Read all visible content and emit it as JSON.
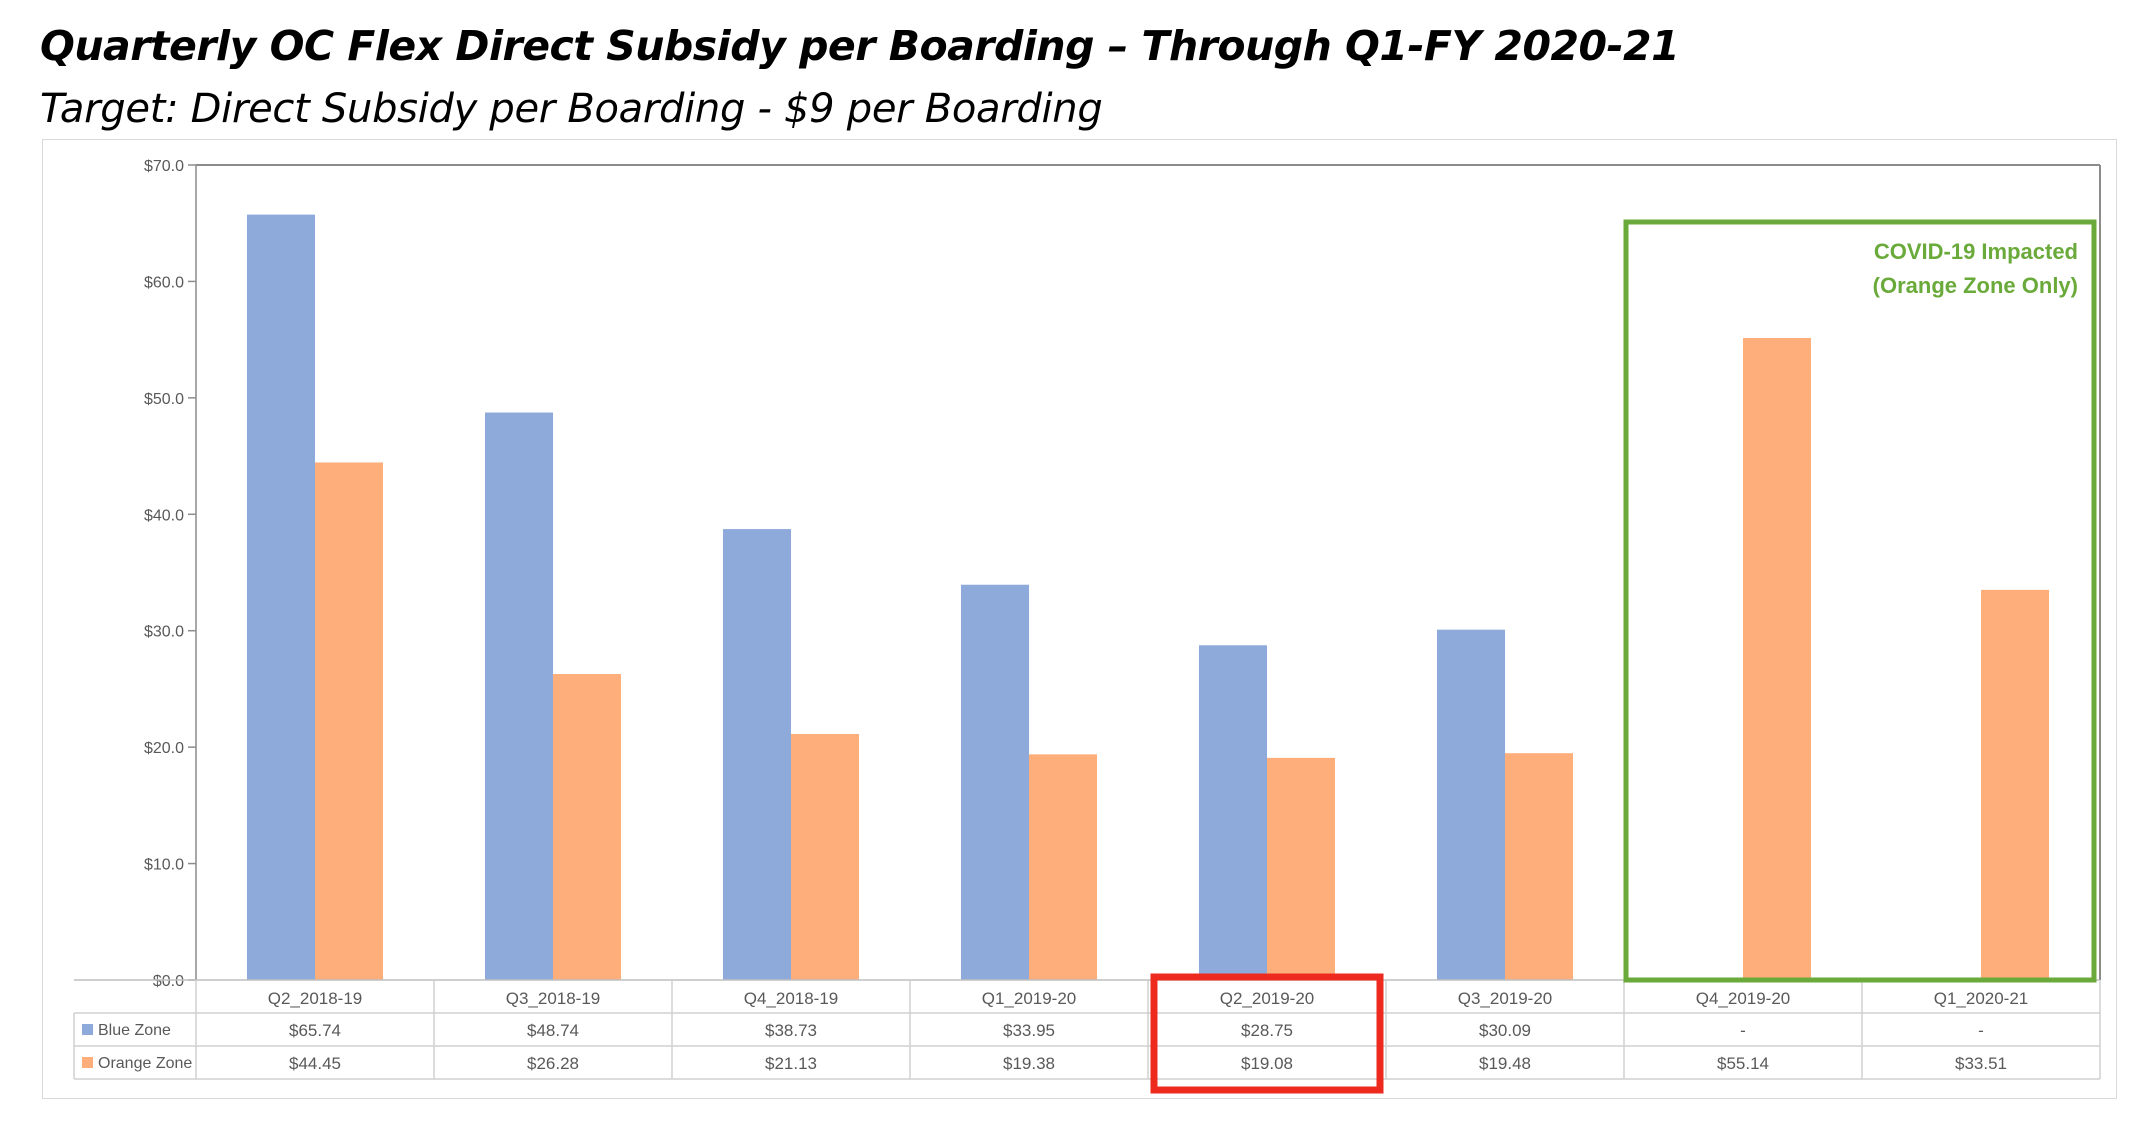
{
  "header": {
    "title": "Quarterly OC Flex Direct Subsidy per Boarding – Through Q1-FY 2020-21",
    "subtitle": "Target: Direct Subsidy per Boarding - $9 per Boarding"
  },
  "chart_data": {
    "type": "bar",
    "title": "",
    "xlabel": "",
    "ylabel": "",
    "ylim": [
      0,
      70
    ],
    "yticks": [
      "$0.0",
      "$10.0",
      "$20.0",
      "$30.0",
      "$40.0",
      "$50.0",
      "$60.0",
      "$70.0"
    ],
    "grid": false,
    "legend": "data table rows",
    "categories": [
      "Q2_2018-19",
      "Q3_2018-19",
      "Q4_2018-19",
      "Q1_2019-20",
      "Q2_2019-20",
      "Q3_2019-20",
      "Q4_2019-20",
      "Q1_2020-21"
    ],
    "series": [
      {
        "name": "Blue Zone",
        "color": "#8eaadb",
        "values": [
          65.74,
          48.74,
          38.73,
          33.95,
          28.75,
          30.09,
          null,
          null
        ],
        "labels": [
          "$65.74",
          "$48.74",
          "$38.73",
          "$33.95",
          "$28.75",
          "$30.09",
          "-",
          "-"
        ]
      },
      {
        "name": "Orange Zone",
        "color": "#fdae7b",
        "values": [
          44.45,
          26.28,
          21.13,
          19.38,
          19.08,
          19.48,
          55.14,
          33.51
        ],
        "labels": [
          "$44.45",
          "$26.28",
          "$21.13",
          "$19.38",
          "$19.08",
          "$19.48",
          "$55.14",
          "$33.51"
        ]
      }
    ],
    "annotations": [
      {
        "type": "box",
        "text_line1": "COVID-19 Impacted",
        "text_line2": "(Orange Zone Only)",
        "color": "#6aaa3a",
        "covers_categories": [
          "Q4_2019-20",
          "Q1_2020-21"
        ]
      },
      {
        "type": "highlight",
        "color": "#ee2a1f",
        "covers_categories": [
          "Q2_2019-20"
        ]
      }
    ]
  }
}
